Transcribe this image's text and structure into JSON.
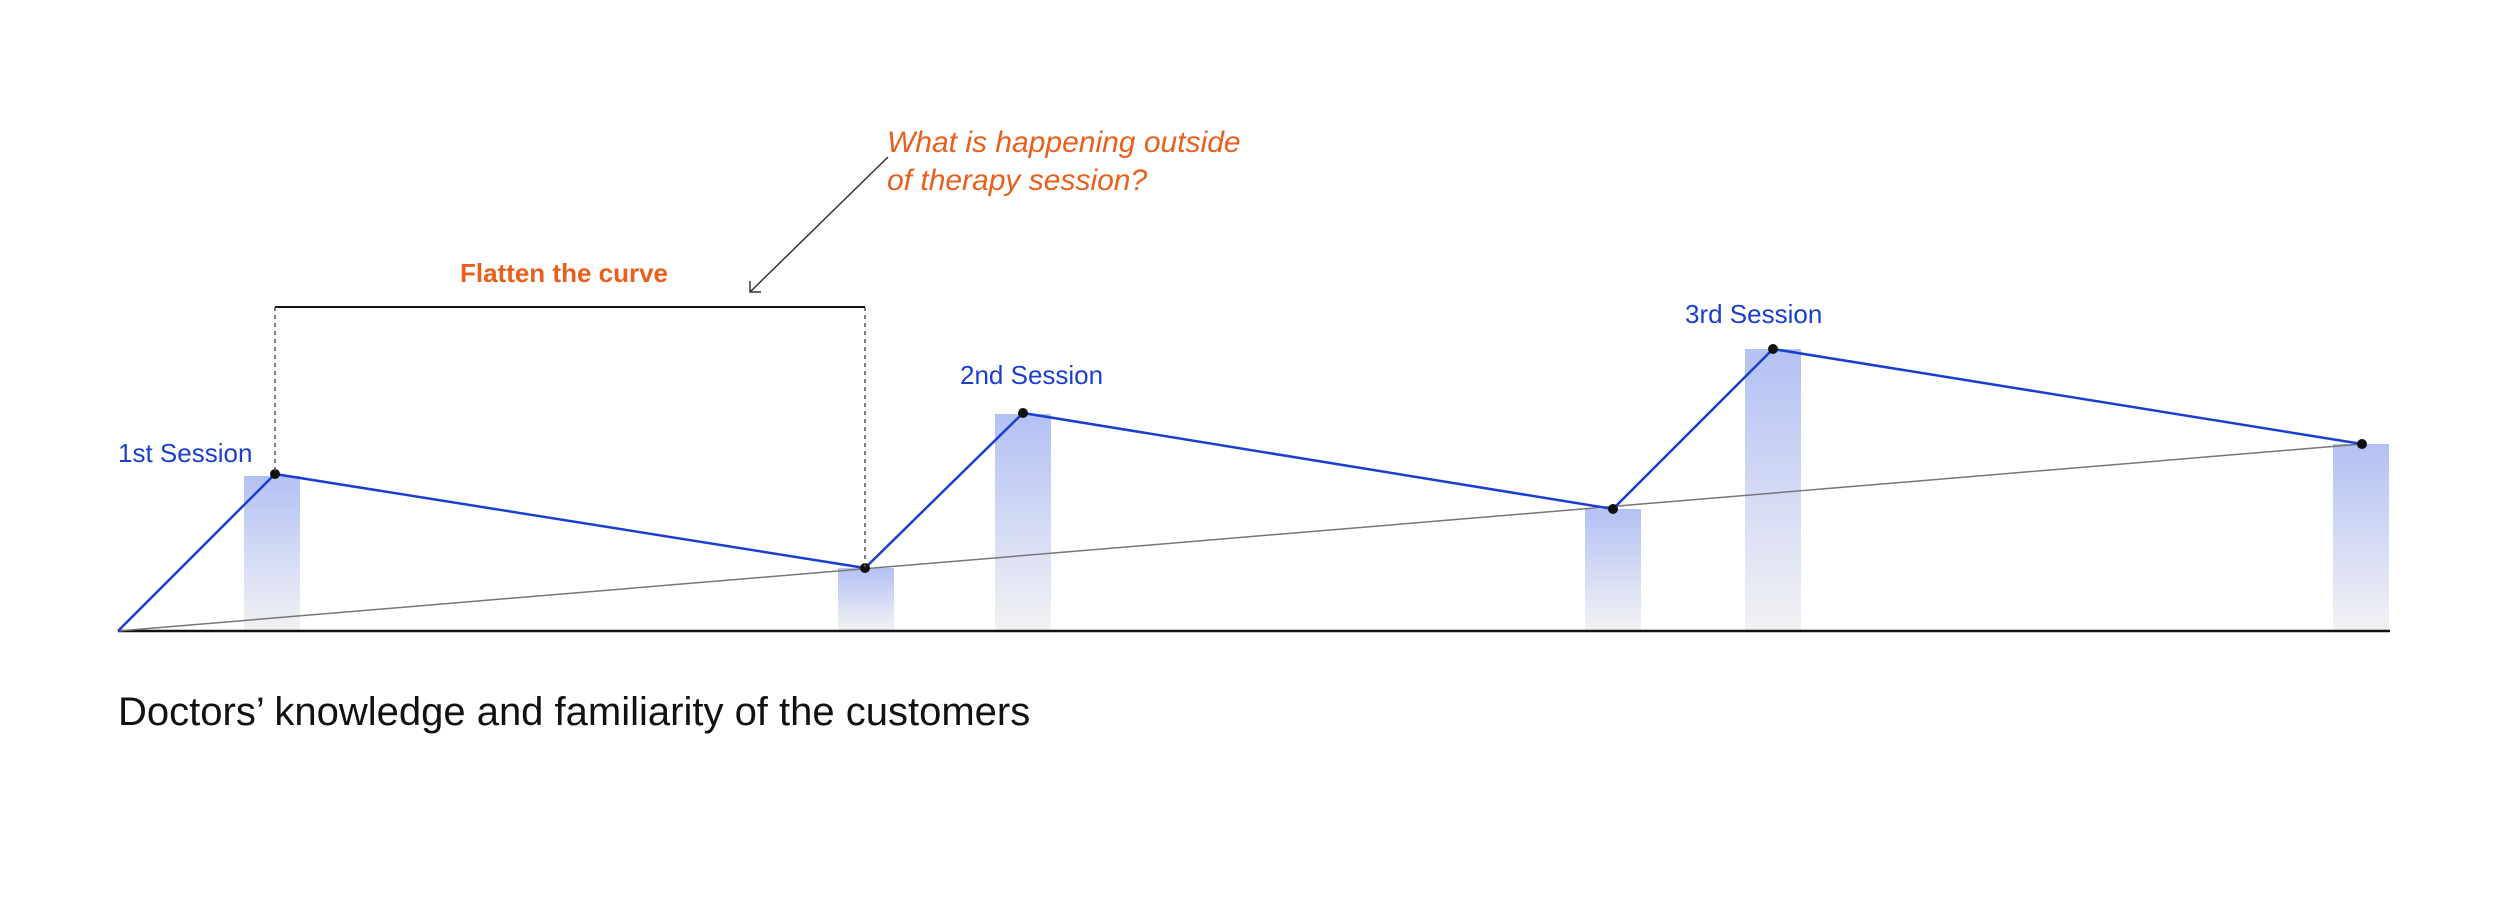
{
  "labels": {
    "session1": "1st Session",
    "session2": "2nd Session",
    "session3": "3rd Session",
    "flatten": "Flatten the curve",
    "question_line1": "What is happening outside",
    "question_line2": "of therapy session?"
  },
  "caption": "Doctors’ knowledge and familiarity of the customers",
  "colors": {
    "accent_blue": "#1a3fd0",
    "bar_fill_top": "#b3c1f4",
    "annotation_orange": "#e8601c",
    "trend_gray": "#777777"
  }
}
